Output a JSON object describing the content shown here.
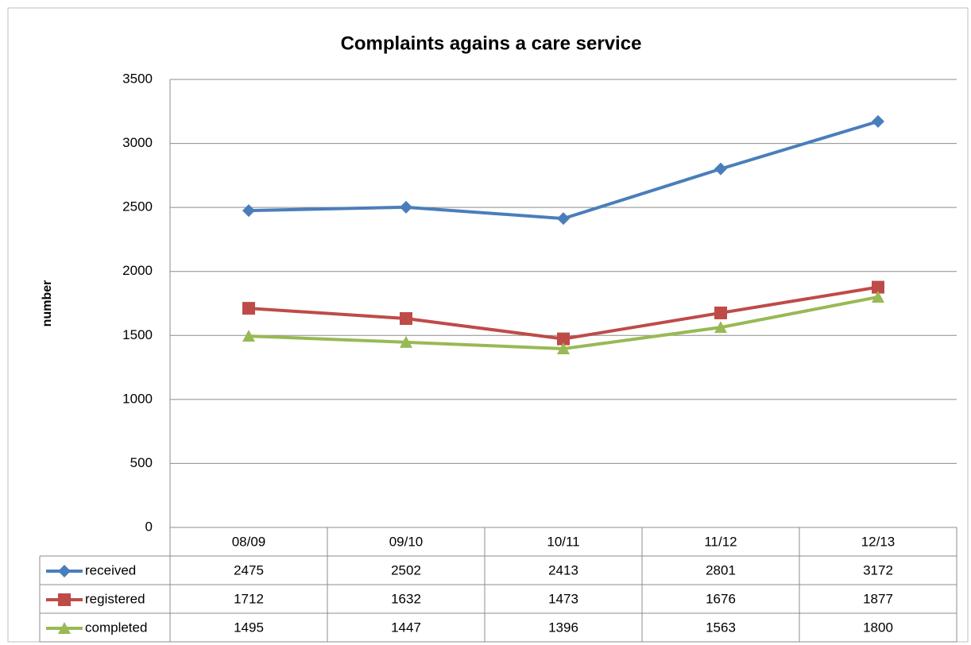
{
  "chart_data": {
    "type": "line",
    "title": "Complaints agains a care service",
    "y_label": "number",
    "categories": [
      "08/09",
      "09/10",
      "10/11",
      "11/12",
      "12/13"
    ],
    "series": [
      {
        "name": "received",
        "color": "#4a7ebb",
        "marker": "diamond",
        "values": [
          2475,
          2502,
          2413,
          2801,
          3172
        ]
      },
      {
        "name": "registered",
        "color": "#be4b48",
        "marker": "square",
        "values": [
          1712,
          1632,
          1473,
          1676,
          1877
        ]
      },
      {
        "name": "completed",
        "color": "#98b954",
        "marker": "triangle",
        "values": [
          1495,
          1447,
          1396,
          1563,
          1800
        ]
      }
    ],
    "ylim": [
      0,
      3500
    ],
    "yticks": [
      0,
      500,
      1000,
      1500,
      2000,
      2500,
      3000,
      3500
    ],
    "grid": true,
    "data_table": true
  }
}
